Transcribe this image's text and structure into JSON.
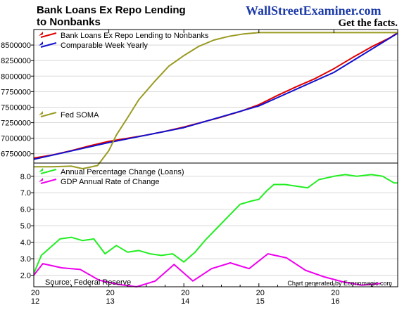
{
  "header": {
    "title_line1": "Bank Loans Ex Repo Lending",
    "title_line2": "to Nonbanks",
    "brand": "WallStreetExaminer.com",
    "tagline": "Get the facts."
  },
  "footer": {
    "source": "Source: Federal Reserve",
    "generated": "Chart generated by Economagic.com"
  },
  "colors": {
    "loans": "#e00000",
    "yearly": "#1010d0",
    "soma": "#9a9a22",
    "pct": "#22ee22",
    "gdp": "#ee00ee",
    "brand": "#1c3aa8",
    "frame": "#000000"
  },
  "chart_data": [
    {
      "type": "line",
      "panel": "top",
      "ylim": [
        6600000,
        8750000
      ],
      "xlim": [
        2012.0,
        2016.85
      ],
      "yticks": [
        6750000,
        7000000,
        7250000,
        7500000,
        7750000,
        8000000,
        8250000,
        8500000
      ],
      "ytick_labels": [
        "6750000",
        "7000000",
        "7250000",
        "7500000",
        "7750000",
        "8000000",
        "8250000",
        "8500000"
      ],
      "grid": true,
      "legend": [
        "top-left",
        "middle-left"
      ],
      "series": [
        {
          "name": "Bank Loans Ex Repo Lending to Nonbanks",
          "color": "#e00000",
          "x": [
            2012.0,
            2012.25,
            2012.5,
            2012.75,
            2013.0,
            2013.25,
            2013.5,
            2013.75,
            2014.0,
            2014.25,
            2014.5,
            2014.75,
            2015.0,
            2015.25,
            2015.5,
            2015.75,
            2016.0,
            2016.25,
            2016.5,
            2016.75,
            2016.85
          ],
          "y": [
            6680000,
            6730000,
            6800000,
            6880000,
            6950000,
            7000000,
            7050000,
            7110000,
            7180000,
            7260000,
            7340000,
            7430000,
            7540000,
            7690000,
            7830000,
            7960000,
            8120000,
            8300000,
            8470000,
            8620000,
            8700000
          ]
        },
        {
          "name": "Comparable Week Yearly",
          "color": "#1010d0",
          "x": [
            2012.0,
            2013.0,
            2014.0,
            2015.0,
            2016.0,
            2016.85
          ],
          "y": [
            6660000,
            6930000,
            7170000,
            7520000,
            8060000,
            8690000
          ]
        },
        {
          "name": "Fed SOMA",
          "color": "#9a9a22",
          "x": [
            2012.0,
            2012.25,
            2012.5,
            2012.65,
            2012.85,
            2013.0,
            2013.1,
            2013.25,
            2013.4,
            2013.6,
            2013.8,
            2014.0,
            2014.2,
            2014.4,
            2014.6,
            2014.8,
            2015.0,
            2015.5,
            2016.0,
            2016.5,
            2016.85
          ],
          "y": [
            6540000,
            6540000,
            6550000,
            6510000,
            6560000,
            6800000,
            7050000,
            7330000,
            7620000,
            7900000,
            8160000,
            8330000,
            8480000,
            8580000,
            8640000,
            8680000,
            8700000,
            8700000,
            8700000,
            8700000,
            8700000
          ]
        }
      ]
    },
    {
      "type": "line",
      "panel": "bottom",
      "ylim": [
        1.3,
        8.8
      ],
      "xlim": [
        2012.0,
        2016.85
      ],
      "yticks": [
        2.0,
        3.0,
        4.0,
        5.0,
        6.0,
        7.0,
        8.0
      ],
      "ytick_labels": [
        "2.0",
        "3.0",
        "4.0",
        "5.0",
        "6.0",
        "7.0",
        "8.0"
      ],
      "xticks": [
        2012,
        2013,
        2014,
        2015,
        2016
      ],
      "xtick_top": [
        "20",
        "20",
        "20",
        "20",
        "20"
      ],
      "xtick_bottom": [
        "12",
        "13",
        "14",
        "15",
        "16"
      ],
      "grid": true,
      "legend": "top-left",
      "series": [
        {
          "name": "Annual Percentage Change (Loans)",
          "color": "#22ee22",
          "x": [
            2012.0,
            2012.1,
            2012.2,
            2012.35,
            2012.5,
            2012.65,
            2012.8,
            2012.95,
            2013.1,
            2013.25,
            2013.4,
            2013.55,
            2013.7,
            2013.85,
            2014.0,
            2014.15,
            2014.3,
            2014.45,
            2014.6,
            2014.75,
            2014.9,
            2015.0,
            2015.1,
            2015.2,
            2015.35,
            2015.5,
            2015.65,
            2015.8,
            2016.0,
            2016.15,
            2016.3,
            2016.5,
            2016.65,
            2016.8,
            2016.85
          ],
          "y": [
            2.1,
            3.2,
            3.6,
            4.2,
            4.3,
            4.1,
            4.2,
            3.3,
            3.8,
            3.4,
            3.5,
            3.3,
            3.2,
            3.3,
            2.8,
            3.4,
            4.2,
            4.9,
            5.6,
            6.3,
            6.5,
            6.6,
            7.1,
            7.5,
            7.5,
            7.4,
            7.3,
            7.8,
            8.0,
            8.1,
            8.0,
            8.1,
            8.0,
            7.6,
            7.6
          ]
        },
        {
          "name": "GDP Annual Rate of Change",
          "color": "#ee00ee",
          "x": [
            2012.0,
            2012.12,
            2012.37,
            2012.62,
            2012.87,
            2013.12,
            2013.37,
            2013.62,
            2013.87,
            2014.12,
            2014.37,
            2014.62,
            2014.87,
            2015.12,
            2015.37,
            2015.62,
            2015.87,
            2016.12,
            2016.37,
            2016.62
          ],
          "y": [
            2.0,
            2.7,
            2.45,
            2.35,
            1.7,
            1.45,
            1.3,
            1.65,
            2.65,
            1.65,
            2.4,
            2.75,
            2.4,
            3.3,
            3.05,
            2.3,
            1.9,
            1.6,
            1.4,
            1.5
          ]
        }
      ]
    }
  ]
}
